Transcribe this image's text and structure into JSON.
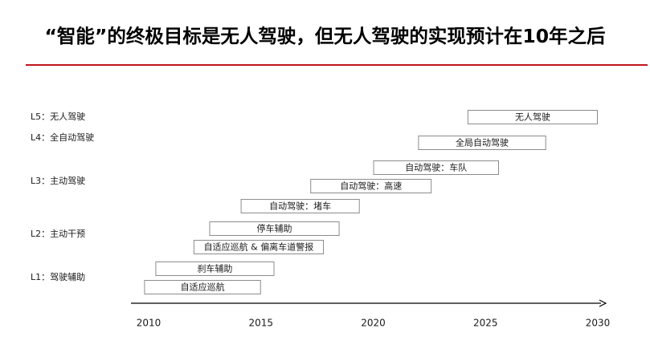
{
  "title": "“智能”的终极目标是无人驾驶，但无人驾驶的实现预计在10年之后",
  "colors": {
    "accent_rule": "#c0161b",
    "bar_border": "#8c8c8c",
    "axis": "#000000"
  },
  "chart_data": {
    "type": "bar",
    "orientation": "horizontal-timeline",
    "xlim": [
      2010,
      2030
    ],
    "x_ticks": [
      "2010",
      "2015",
      "2020",
      "2025",
      "2030"
    ],
    "grid": false,
    "levels": [
      {
        "label": "L5：无人驾驶"
      },
      {
        "label": "L4：全自动驾驶"
      },
      {
        "label": "L3：主动驾驶"
      },
      {
        "label": "L2：主动干预"
      },
      {
        "label": "L1：驾驶辅助"
      }
    ],
    "bars": [
      {
        "label": "无人驾驶",
        "start": 2024.2,
        "end": 2030
      },
      {
        "label": "全局自动驾驶",
        "start": 2022.0,
        "end": 2027.7
      },
      {
        "label": "自动驾驶：车队",
        "start": 2020.0,
        "end": 2025.6
      },
      {
        "label": "自动驾驶：高速",
        "start": 2017.2,
        "end": 2022.6
      },
      {
        "label": "自动驾驶：堵车",
        "start": 2014.1,
        "end": 2019.4
      },
      {
        "label": "停车辅助",
        "start": 2012.7,
        "end": 2018.5
      },
      {
        "label": "自适应巡航 & 偏离车道警报",
        "start": 2012.0,
        "end": 2017.8
      },
      {
        "label": "刹车辅助",
        "start": 2010.3,
        "end": 2015.6
      },
      {
        "label": "自适应巡航",
        "start": 2009.8,
        "end": 2015.0
      }
    ]
  }
}
